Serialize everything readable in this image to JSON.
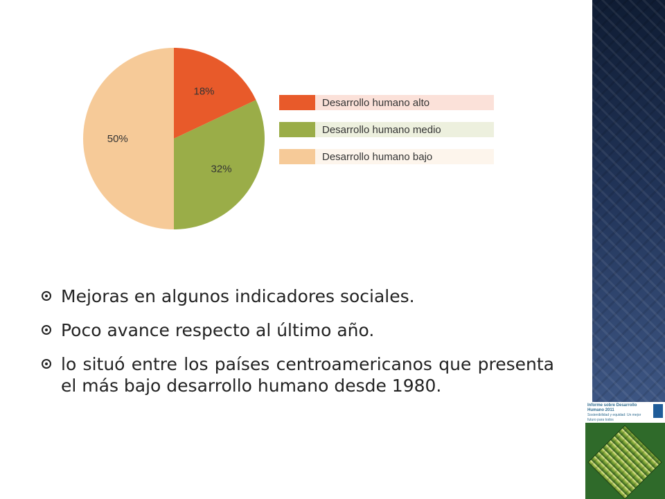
{
  "chart_data": {
    "type": "pie",
    "slices": [
      {
        "label": "Desarrollo humano alto",
        "value": 18,
        "value_label": "18%",
        "color": "#e85a2a"
      },
      {
        "label": "Desarrollo humano medio",
        "value": 32,
        "value_label": "32%",
        "color": "#9aad48"
      },
      {
        "label": "Desarrollo humano bajo",
        "value": 50,
        "value_label": "50%",
        "color": "#f6ca98"
      }
    ],
    "start_angle_deg": 0,
    "direction": "clockwise",
    "legend_placement": "right"
  },
  "bullets": [
    {
      "text": " Mejoras en algunos indicadores sociales."
    },
    {
      "text": " Poco avance respecto al último año."
    },
    {
      "text": " lo situó entre los países centroamericanos que presenta el más bajo desarrollo humano desde 1980."
    }
  ],
  "cover": {
    "title": "Informe sobre Desarrollo Humano 2011",
    "subtitle": "Sostenibilidad y equidad: Un mejor futuro para todos"
  },
  "colors": {
    "side_panel": "#34496e",
    "text": "#222222"
  }
}
